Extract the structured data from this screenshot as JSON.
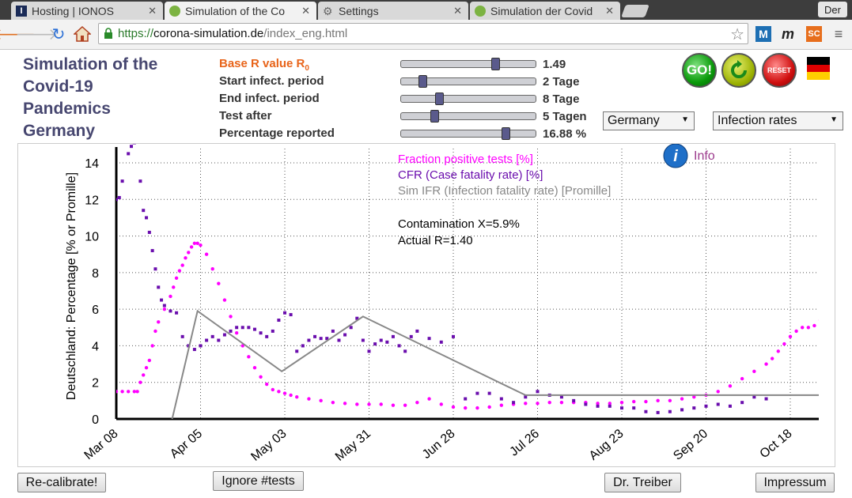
{
  "browser": {
    "tabs": [
      {
        "label": "Hosting | IONOS",
        "active": false
      },
      {
        "label": "Simulation of the Co",
        "active": true
      },
      {
        "label": "Settings",
        "active": false
      },
      {
        "label": "Simulation der Covid",
        "active": false
      }
    ],
    "user_label": "Der",
    "url_scheme": "https://",
    "url_host": "corona-simulation.de",
    "url_path": "/index_eng.html",
    "extensions": [
      "M",
      "m",
      "SC"
    ]
  },
  "page": {
    "title_lines": [
      "Simulation of the",
      "Covid-19",
      "Pandemics",
      "Germany"
    ],
    "params": [
      {
        "label": "Base R value R",
        "sub": "0",
        "value": "1.49",
        "fraction": 0.72
      },
      {
        "label": "Start infect. period",
        "value": "2 Tage",
        "fraction": 0.14
      },
      {
        "label": "End infect. period",
        "value": "8 Tage",
        "fraction": 0.27
      },
      {
        "label": "Test after",
        "value": "5 Tagen",
        "fraction": 0.23
      },
      {
        "label": "Percentage reported",
        "value": "16.88 %",
        "fraction": 0.8
      }
    ],
    "go_label": "GO!",
    "reset_label": "RESET",
    "country_select": "Germany",
    "view_select": "Infection rates",
    "info_label": "Info",
    "buttons": {
      "recalibrate": "Re-calibrate!",
      "ignore_tests": "Ignore #tests",
      "dr_treiber": "Dr. Treiber",
      "impressum": "Impressum"
    },
    "colors": {
      "accent_orange": "#e8641a",
      "title": "#474770",
      "pink": "#ff00ff",
      "purple": "#6a0dad",
      "gray": "#808080"
    }
  },
  "chart_data": {
    "type": "scatter",
    "ylabel": "Deutschland: Percentage [% or Promille]",
    "ylim": [
      0,
      15
    ],
    "yticks": [
      "0",
      "2",
      "4",
      "6",
      "8",
      "10",
      "12",
      "14"
    ],
    "xticks": [
      "Mar 08",
      "Apr 05",
      "May 03",
      "May 31",
      "Jun 28",
      "Jul 26",
      "Aug 23",
      "Sep 20",
      "Oct 18"
    ],
    "xlim_days": [
      0,
      235
    ],
    "grid": true,
    "legend": [
      {
        "name": "Fraction positive tests [%]",
        "color": "#ff00ff"
      },
      {
        "name": "CFR (Case fatality rate) [%]",
        "color": "#6a0dad"
      },
      {
        "name": "Sim IFR (Infection fatality rate) [Promille]",
        "color": "#888888"
      }
    ],
    "annotations": [
      "Contamination X=5.9%",
      "Actual R=1.40"
    ],
    "series": [
      {
        "name": "Fraction positive tests [%]",
        "kind": "points",
        "x": [
          0,
          2,
          4,
          6,
          7,
          8,
          9,
          10,
          11,
          12,
          13,
          14,
          16,
          18,
          19,
          20,
          21,
          22,
          23,
          24,
          25,
          26,
          27,
          28,
          30,
          32,
          34,
          36,
          38,
          40,
          42,
          44,
          46,
          48,
          50,
          52,
          54,
          56,
          58,
          60,
          64,
          68,
          72,
          76,
          80,
          84,
          88,
          92,
          96,
          100,
          104,
          108,
          112,
          116,
          120,
          124,
          128,
          132,
          136,
          140,
          144,
          148,
          152,
          156,
          160,
          164,
          168,
          172,
          176,
          180,
          184,
          188,
          192,
          196,
          200,
          204,
          208,
          212,
          216,
          218,
          220,
          222,
          224,
          226,
          228,
          230,
          232,
          234
        ],
        "values": [
          1.5,
          1.5,
          1.5,
          1.5,
          1.5,
          2.0,
          2.4,
          2.8,
          3.2,
          4.0,
          4.8,
          5.3,
          6.0,
          6.7,
          7.2,
          7.7,
          8.1,
          8.4,
          8.8,
          9.1,
          9.4,
          9.6,
          9.6,
          9.5,
          9.0,
          8.2,
          7.4,
          6.5,
          5.6,
          4.7,
          4.0,
          3.4,
          2.8,
          2.3,
          1.9,
          1.6,
          1.5,
          1.4,
          1.3,
          1.2,
          1.1,
          1.0,
          0.9,
          0.85,
          0.8,
          0.8,
          0.8,
          0.75,
          0.75,
          0.9,
          1.1,
          0.8,
          0.65,
          0.6,
          0.6,
          0.65,
          0.75,
          0.8,
          0.85,
          0.85,
          0.9,
          0.9,
          0.9,
          0.9,
          0.85,
          0.85,
          0.9,
          0.95,
          0.95,
          1.0,
          1.0,
          1.1,
          1.2,
          1.3,
          1.5,
          1.8,
          2.2,
          2.6,
          3.0,
          3.3,
          3.7,
          4.1,
          4.5,
          4.8,
          5.0,
          5.0,
          5.1,
          5.4
        ]
      },
      {
        "name": "CFR (Case fatality rate) [%]",
        "kind": "points",
        "x": [
          0,
          1,
          2,
          4,
          5,
          6,
          8,
          9,
          10,
          11,
          12,
          13,
          14,
          15,
          16,
          18,
          20,
          22,
          24,
          26,
          28,
          30,
          32,
          34,
          36,
          38,
          40,
          42,
          44,
          46,
          48,
          50,
          52,
          54,
          56,
          58,
          60,
          62,
          64,
          66,
          68,
          70,
          72,
          74,
          76,
          78,
          80,
          82,
          84,
          86,
          88,
          90,
          92,
          94,
          96,
          98,
          100,
          104,
          108,
          112,
          116,
          120,
          124,
          128,
          132,
          136,
          140,
          144,
          148,
          152,
          156,
          160,
          164,
          168,
          172,
          176,
          180,
          184,
          188,
          192,
          196,
          200,
          204,
          208,
          212,
          216
        ],
        "values": [
          12,
          12.1,
          13,
          14.5,
          14.9,
          15.1,
          13,
          11.4,
          11,
          10.2,
          9.2,
          8.2,
          7.2,
          6.5,
          6.2,
          5.9,
          5.8,
          4.5,
          4.0,
          3.8,
          4.0,
          4.3,
          4.5,
          4.3,
          4.6,
          4.8,
          5.0,
          5.0,
          5.0,
          4.9,
          4.7,
          4.5,
          4.8,
          5.4,
          5.8,
          5.7,
          3.7,
          4.0,
          4.3,
          4.5,
          4.4,
          4.4,
          4.8,
          4.3,
          4.6,
          5.0,
          5.5,
          4.3,
          3.7,
          4.1,
          4.3,
          4.2,
          4.5,
          4.0,
          3.7,
          4.5,
          4.8,
          4.4,
          4.2,
          4.5,
          1.1,
          1.4,
          1.4,
          1.1,
          0.9,
          1.2,
          1.5,
          1.3,
          1.2,
          1.0,
          0.8,
          0.7,
          0.7,
          0.6,
          0.6,
          0.4,
          0.35,
          0.4,
          0.5,
          0.6,
          0.7,
          0.8,
          0.7,
          0.9,
          1.2,
          1.1
        ]
      },
      {
        "name": "Sim IFR (Infection fatality rate) [Promille]",
        "kind": "line",
        "x": [
          18,
          27,
          55,
          82,
          136,
          235
        ],
        "values": [
          -0.4,
          5.9,
          2.6,
          5.6,
          1.3,
          1.3
        ]
      }
    ]
  }
}
